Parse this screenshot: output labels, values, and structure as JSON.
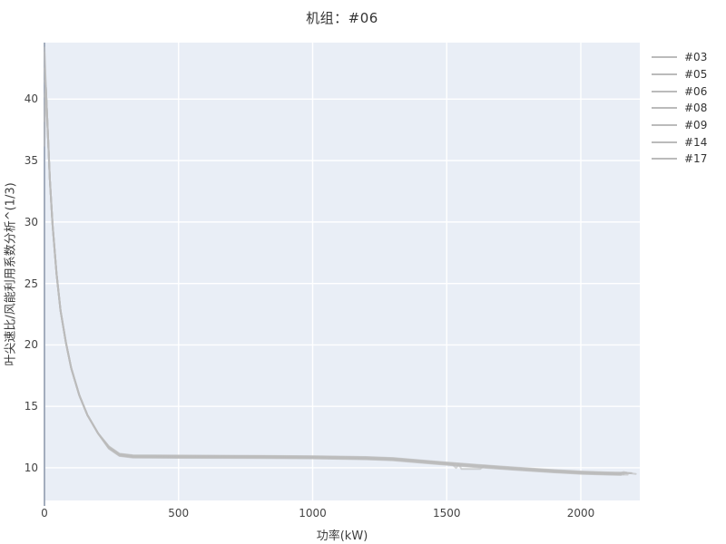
{
  "title": "机组：#06",
  "chart_data": {
    "type": "line",
    "title": "机组：#06",
    "xlabel": "功率(kW)",
    "ylabel": "叶尖速比/风能利用系数分析^(1/3)",
    "x_ticks": [
      0,
      500,
      1000,
      1500,
      2000
    ],
    "y_ticks": [
      10,
      15,
      20,
      25,
      30,
      35,
      40
    ],
    "x_range": [
      0,
      2220
    ],
    "y_range": [
      7.34,
      44.6
    ],
    "grid": true,
    "legend_position": "right",
    "colors": {
      "plot_bg": "#e9eef6",
      "grid": "#ffffff",
      "zeroline": "#a3adbd",
      "line": "#bbbbbb",
      "text": "#3d3d3d"
    },
    "series": [
      {
        "name": "#03",
        "points": [
          [
            0,
            43.8
          ],
          [
            5,
            41
          ],
          [
            10,
            38.5
          ],
          [
            20,
            33.5
          ],
          [
            30,
            29.8
          ],
          [
            45,
            25.8
          ],
          [
            60,
            22.8
          ],
          [
            80,
            20.2
          ],
          [
            100,
            18.1
          ],
          [
            130,
            15.9
          ],
          [
            160,
            14.3
          ],
          [
            200,
            12.8
          ],
          [
            240,
            11.75
          ],
          [
            280,
            11.15
          ],
          [
            330,
            11.02
          ],
          [
            500,
            11.0
          ],
          [
            800,
            10.98
          ],
          [
            1000,
            10.95
          ],
          [
            1200,
            10.88
          ],
          [
            1300,
            10.8
          ],
          [
            1450,
            10.52
          ],
          [
            1600,
            10.26
          ],
          [
            1750,
            10.03
          ],
          [
            1900,
            9.82
          ],
          [
            2000,
            9.7
          ],
          [
            2100,
            9.63
          ],
          [
            2170,
            9.6
          ]
        ]
      },
      {
        "name": "#05",
        "points": [
          [
            0,
            42.5
          ],
          [
            5,
            41
          ],
          [
            10,
            38.5
          ],
          [
            20,
            33.5
          ],
          [
            30,
            29.8
          ],
          [
            45,
            25.8
          ],
          [
            60,
            22.8
          ],
          [
            80,
            20.2
          ],
          [
            100,
            18.1
          ],
          [
            130,
            15.9
          ],
          [
            160,
            14.3
          ],
          [
            200,
            12.8
          ],
          [
            240,
            11.7
          ],
          [
            280,
            11.1
          ],
          [
            330,
            10.97
          ],
          [
            500,
            10.95
          ],
          [
            800,
            10.93
          ],
          [
            1000,
            10.9
          ],
          [
            1200,
            10.83
          ],
          [
            1300,
            10.75
          ],
          [
            1450,
            10.47
          ],
          [
            1600,
            10.21
          ],
          [
            1750,
            9.98
          ],
          [
            1900,
            9.77
          ],
          [
            2000,
            9.65
          ],
          [
            2100,
            9.58
          ],
          [
            2185,
            9.55
          ]
        ]
      },
      {
        "name": "#06",
        "points": [
          [
            0,
            44.2
          ],
          [
            5,
            41
          ],
          [
            10,
            38.5
          ],
          [
            20,
            33.5
          ],
          [
            30,
            29.8
          ],
          [
            45,
            25.8
          ],
          [
            60,
            22.8
          ],
          [
            80,
            20.2
          ],
          [
            100,
            18.1
          ],
          [
            130,
            15.9
          ],
          [
            160,
            14.3
          ],
          [
            200,
            12.8
          ],
          [
            240,
            11.65
          ],
          [
            280,
            11.05
          ],
          [
            330,
            10.92
          ],
          [
            500,
            10.9
          ],
          [
            800,
            10.88
          ],
          [
            1000,
            10.85
          ],
          [
            1200,
            10.78
          ],
          [
            1300,
            10.7
          ],
          [
            1450,
            10.45
          ],
          [
            1520,
            10.3
          ],
          [
            1535,
            9.98
          ],
          [
            1545,
            10.28
          ],
          [
            1555,
            9.9
          ],
          [
            1625,
            9.9
          ],
          [
            1640,
            10.18
          ],
          [
            1690,
            10.02
          ],
          [
            1750,
            9.93
          ],
          [
            1900,
            9.72
          ],
          [
            2000,
            9.6
          ],
          [
            2100,
            9.53
          ],
          [
            2140,
            9.5
          ],
          [
            2160,
            9.66
          ],
          [
            2180,
            9.57
          ],
          [
            2205,
            9.5
          ]
        ]
      },
      {
        "name": "#08",
        "points": [
          [
            0,
            41.5
          ],
          [
            5,
            41
          ],
          [
            10,
            38.5
          ],
          [
            20,
            33.5
          ],
          [
            30,
            29.8
          ],
          [
            45,
            25.8
          ],
          [
            60,
            22.8
          ],
          [
            80,
            20.2
          ],
          [
            100,
            18.1
          ],
          [
            130,
            15.9
          ],
          [
            160,
            14.3
          ],
          [
            200,
            12.8
          ],
          [
            240,
            11.61
          ],
          [
            280,
            11.01
          ],
          [
            330,
            10.88
          ],
          [
            500,
            10.86
          ],
          [
            800,
            10.84
          ],
          [
            1000,
            10.81
          ],
          [
            1200,
            10.74
          ],
          [
            1300,
            10.66
          ],
          [
            1450,
            10.38
          ],
          [
            1600,
            10.12
          ],
          [
            1750,
            9.89
          ],
          [
            1900,
            9.68
          ],
          [
            2000,
            9.56
          ],
          [
            2100,
            9.49
          ],
          [
            2160,
            9.46
          ]
        ]
      },
      {
        "name": "#09",
        "points": [
          [
            0,
            40.2
          ],
          [
            5,
            41
          ],
          [
            10,
            38.5
          ],
          [
            20,
            33.5
          ],
          [
            30,
            29.8
          ],
          [
            45,
            25.8
          ],
          [
            60,
            22.8
          ],
          [
            80,
            20.2
          ],
          [
            100,
            18.1
          ],
          [
            130,
            15.9
          ],
          [
            160,
            14.3
          ],
          [
            200,
            12.8
          ],
          [
            240,
            11.72
          ],
          [
            280,
            11.12
          ],
          [
            330,
            10.99
          ],
          [
            500,
            10.97
          ],
          [
            800,
            10.95
          ],
          [
            1000,
            10.92
          ],
          [
            1200,
            10.85
          ],
          [
            1300,
            10.77
          ],
          [
            1450,
            10.49
          ],
          [
            1600,
            10.23
          ],
          [
            1750,
            10.0
          ],
          [
            1900,
            9.79
          ],
          [
            2000,
            9.67
          ],
          [
            2100,
            9.6
          ],
          [
            2190,
            9.57
          ]
        ]
      },
      {
        "name": "#14",
        "points": [
          [
            0,
            38.2
          ],
          [
            5,
            41
          ],
          [
            10,
            38.5
          ],
          [
            20,
            33.5
          ],
          [
            30,
            29.8
          ],
          [
            45,
            25.8
          ],
          [
            60,
            22.8
          ],
          [
            80,
            20.2
          ],
          [
            100,
            18.1
          ],
          [
            130,
            15.9
          ],
          [
            160,
            14.3
          ],
          [
            200,
            12.8
          ],
          [
            240,
            11.59
          ],
          [
            280,
            10.99
          ],
          [
            330,
            10.86
          ],
          [
            500,
            10.84
          ],
          [
            800,
            10.82
          ],
          [
            1000,
            10.79
          ],
          [
            1200,
            10.72
          ],
          [
            1300,
            10.64
          ],
          [
            1450,
            10.36
          ],
          [
            1600,
            10.1
          ],
          [
            1750,
            9.87
          ],
          [
            1900,
            9.66
          ],
          [
            2000,
            9.54
          ],
          [
            2100,
            9.47
          ],
          [
            2175,
            9.44
          ]
        ]
      },
      {
        "name": "#17",
        "points": [
          [
            0,
            36.2
          ],
          [
            5,
            41
          ],
          [
            10,
            38.5
          ],
          [
            20,
            33.5
          ],
          [
            30,
            29.8
          ],
          [
            45,
            25.8
          ],
          [
            60,
            22.8
          ],
          [
            80,
            20.2
          ],
          [
            100,
            18.1
          ],
          [
            130,
            15.9
          ],
          [
            160,
            14.3
          ],
          [
            200,
            12.8
          ],
          [
            240,
            11.56
          ],
          [
            280,
            10.96
          ],
          [
            330,
            10.83
          ],
          [
            500,
            10.81
          ],
          [
            800,
            10.79
          ],
          [
            1000,
            10.76
          ],
          [
            1200,
            10.69
          ],
          [
            1300,
            10.61
          ],
          [
            1450,
            10.33
          ],
          [
            1600,
            10.07
          ],
          [
            1750,
            9.84
          ],
          [
            1900,
            9.63
          ],
          [
            2000,
            9.51
          ],
          [
            2100,
            9.44
          ],
          [
            2150,
            9.41
          ]
        ]
      }
    ]
  }
}
